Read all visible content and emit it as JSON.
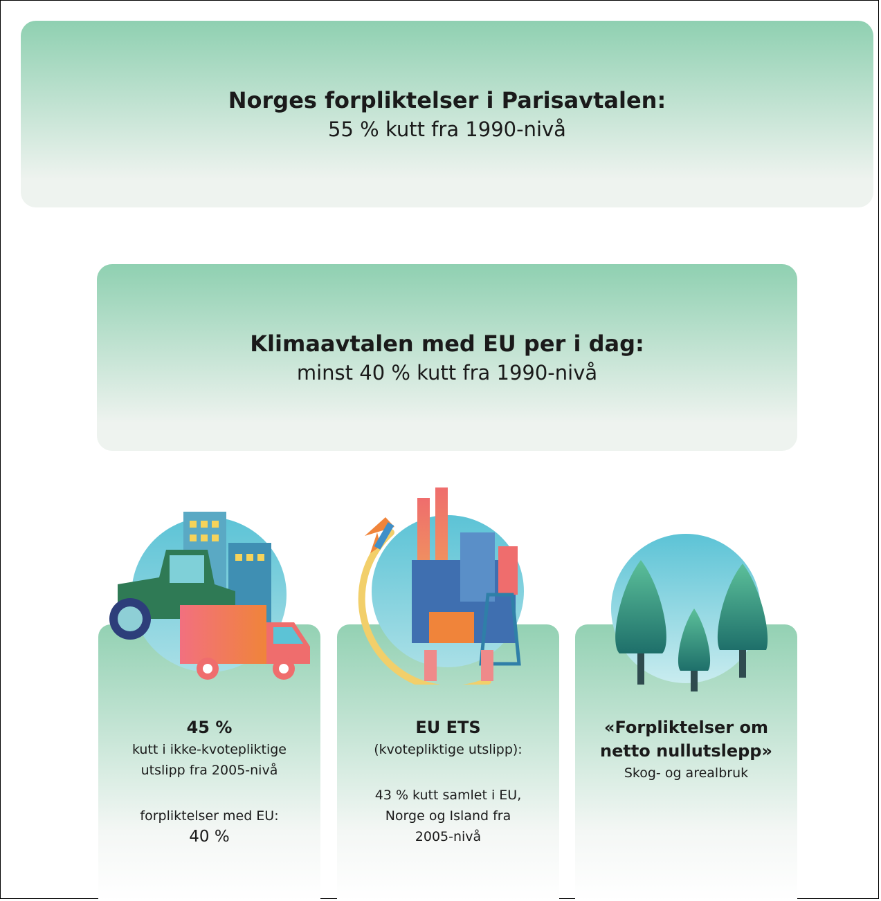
{
  "header": {
    "title": "Norges forpliktelser i Parisavtalen:",
    "subtitle": "55 % kutt fra 1990-nivå"
  },
  "agreement": {
    "title": "Klimaavtalen med EU per i dag:",
    "subtitle": "minst 40 % kutt fra 1990-nivå"
  },
  "cards": [
    {
      "title": [
        "45 %"
      ],
      "body": [
        "kutt i ikke-kvotepliktige",
        "utslipp fra 2005-nivå"
      ],
      "extra": [
        "forpliktelser med EU:",
        "40 %"
      ]
    },
    {
      "title": [
        "EU ETS"
      ],
      "body": [
        "(kvotepliktige utslipp):"
      ],
      "extra": [
        "43 % kutt samlet i EU,",
        "Norge og Island fra",
        "2005-nivå"
      ]
    },
    {
      "title": [
        "«Forpliktelser om",
        "netto nullutslepp»"
      ],
      "body": [
        "Skog- og arealbruk"
      ]
    }
  ]
}
